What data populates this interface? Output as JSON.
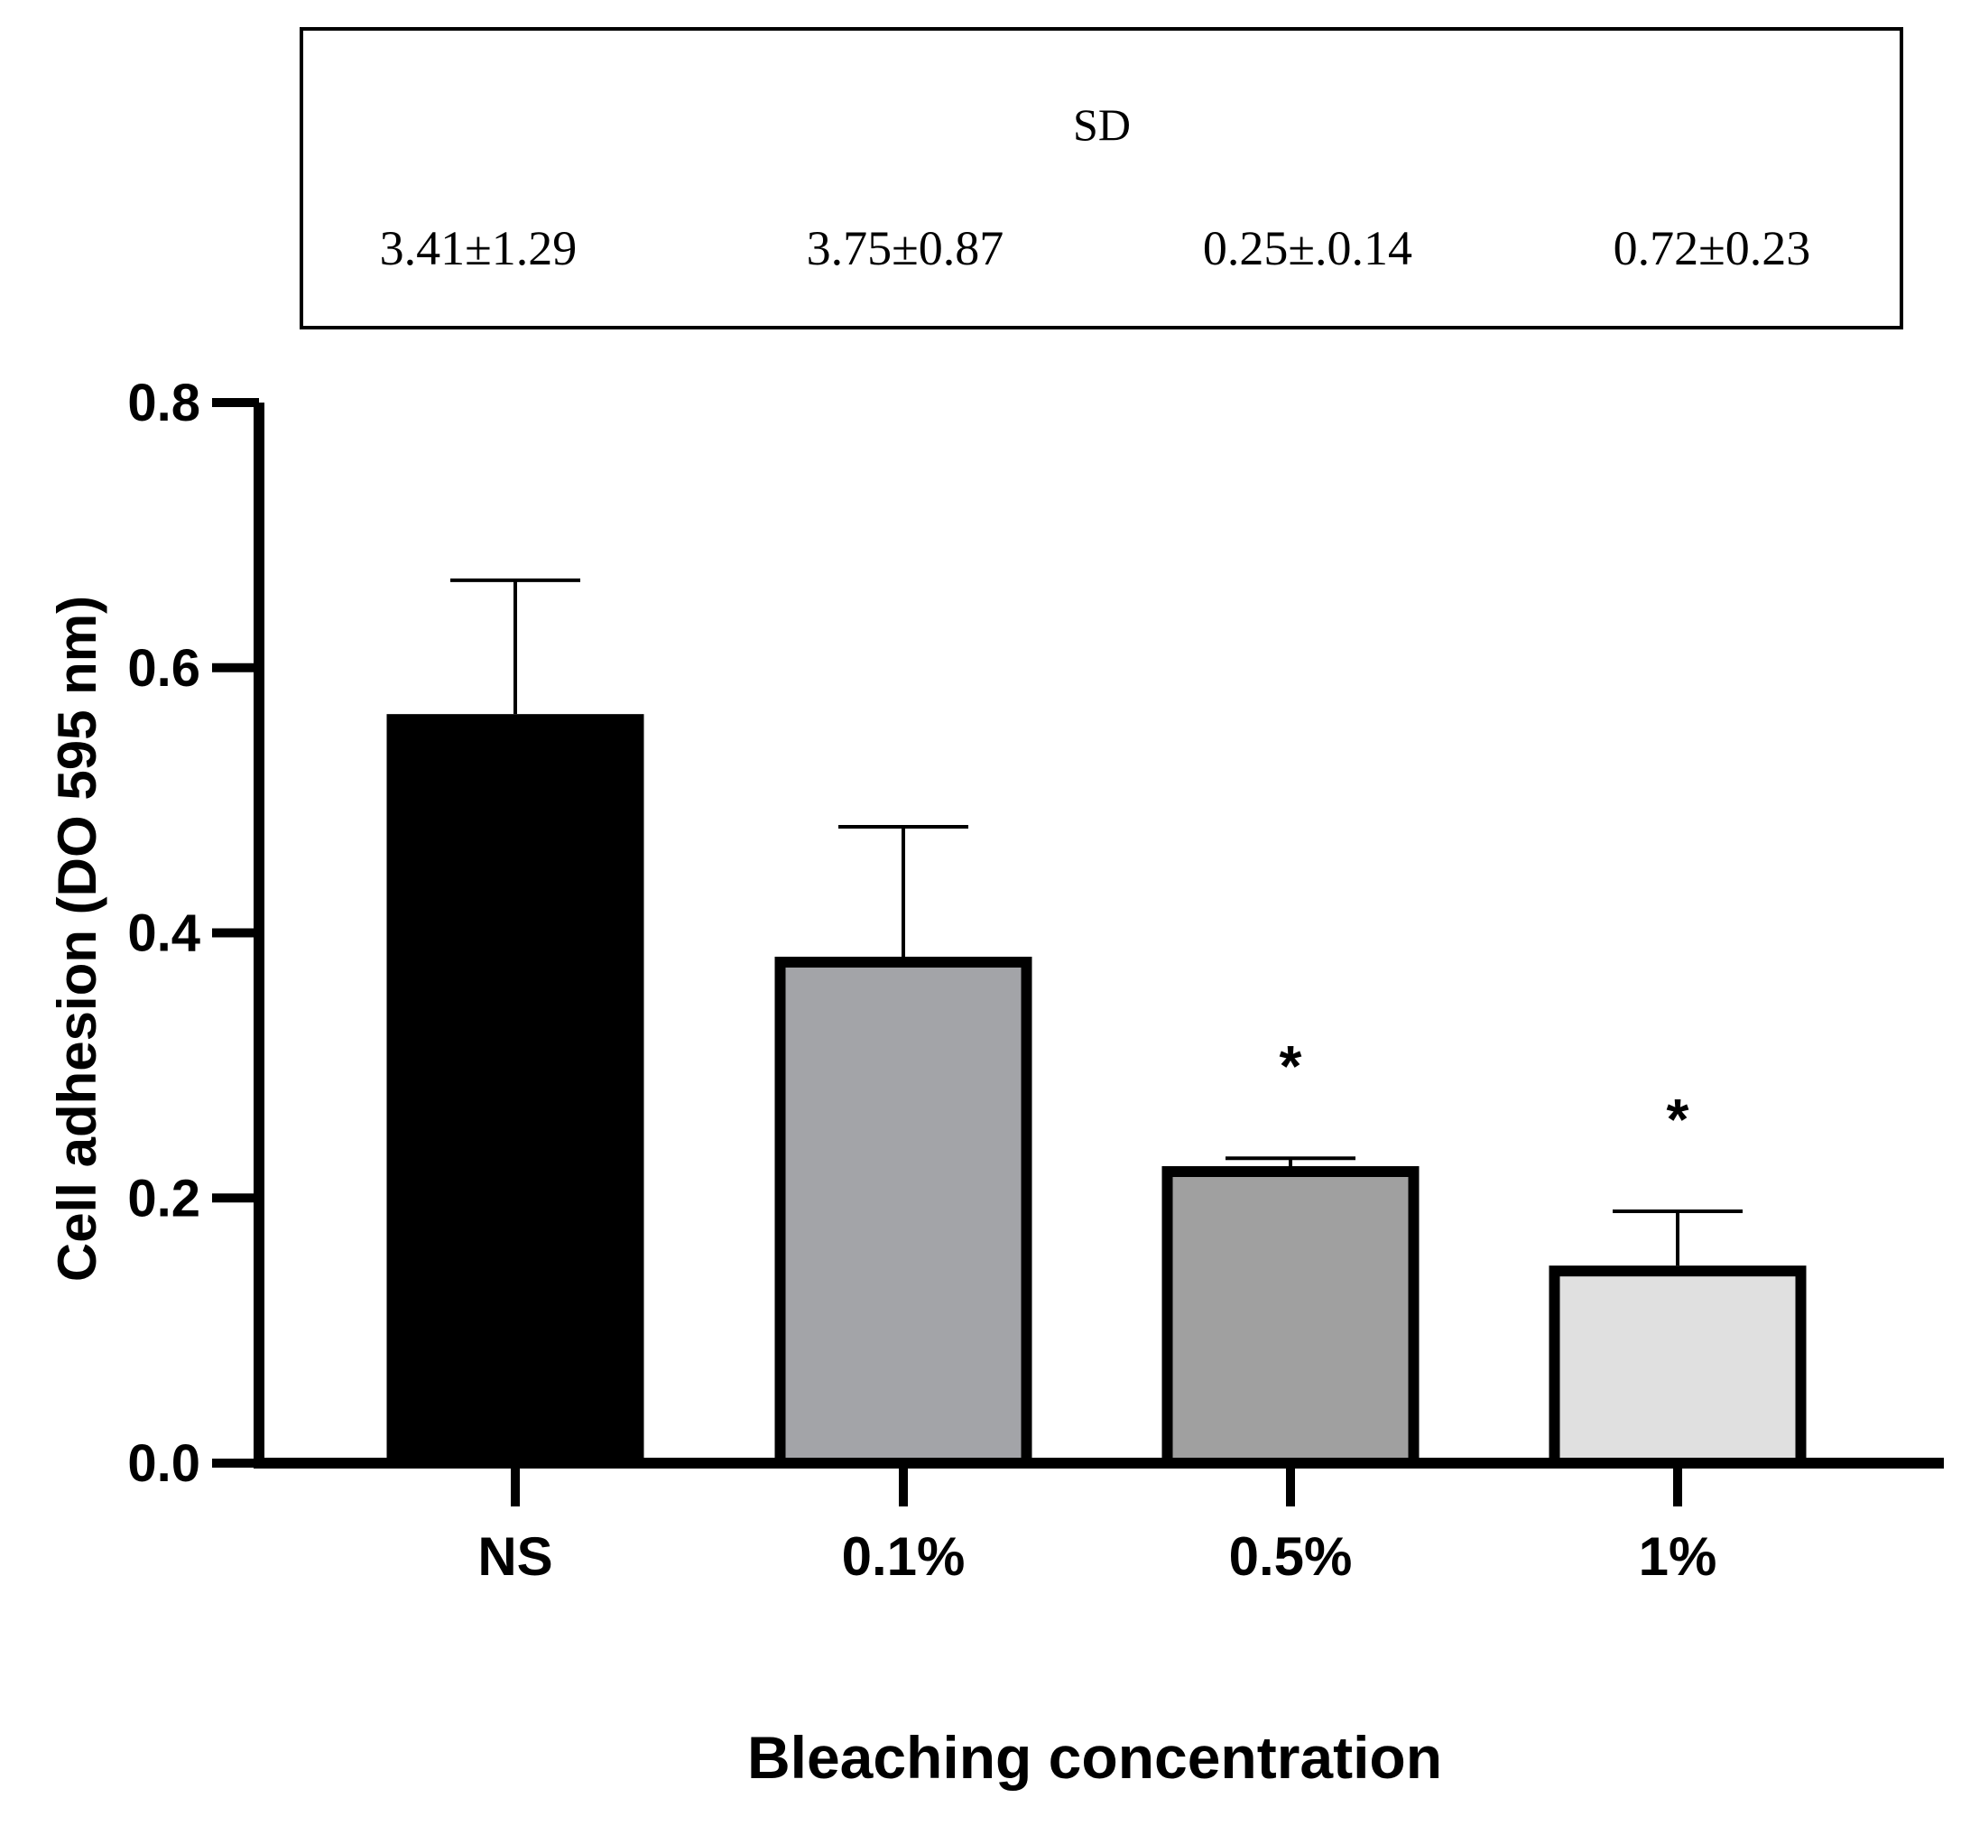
{
  "chart_data": {
    "type": "bar",
    "title": "",
    "xlabel": "Bleaching concentration",
    "ylabel": "Cell adhesion (DO 595 nm)",
    "ylim": [
      0,
      0.8
    ],
    "yticks": [
      "0.0",
      "0.2",
      "0.4",
      "0.6",
      "0.8"
    ],
    "ytick_values": [
      0,
      0.2,
      0.4,
      0.6,
      0.8
    ],
    "grid": false,
    "categories": [
      "NS",
      "0.1%",
      "0.5%",
      "1%"
    ],
    "values": [
      0.565,
      0.382,
      0.224,
      0.149
    ],
    "error_upper": [
      0.666,
      0.48,
      0.23,
      0.19
    ],
    "bar_fill_colors": [
      "#000000",
      "#a3a4a8",
      "#a0a0a0",
      "#e0e0e0"
    ],
    "bar_stroke_color": "#000000",
    "significance": [
      "",
      "",
      "*",
      "*"
    ],
    "sd_table": {
      "header": "SD",
      "values": [
        "3.41±1.29",
        "3.75±0.87",
        "0.25±.0.14",
        "0.72±0.23"
      ]
    }
  }
}
